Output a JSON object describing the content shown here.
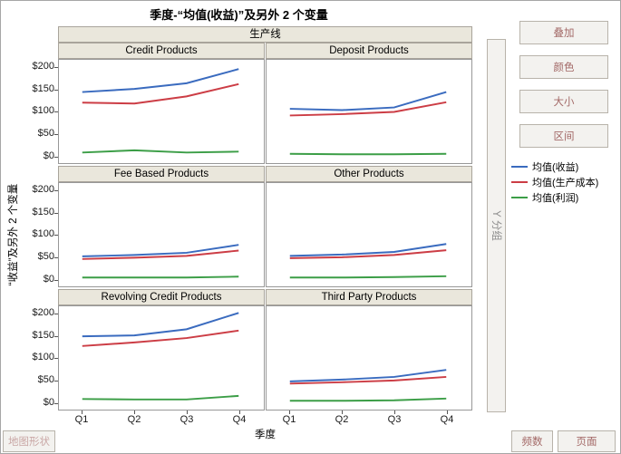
{
  "title": "季度-“均值(收益)”及另外 2 个变量",
  "chart_data": {
    "type": "line",
    "column_group_label": "生产线",
    "x": [
      "Q1",
      "Q2",
      "Q3",
      "Q4"
    ],
    "xlabel": "季度",
    "ylabel": "“收益”及另外 2 个变量",
    "ylim": [
      -16,
      218
    ],
    "yticks": [
      200,
      150,
      100,
      50,
      0
    ],
    "ytick_labels": [
      "$200",
      "$150",
      "$100",
      "$50",
      "$0"
    ],
    "grid": false,
    "legend_position": "right",
    "legend_entries": [
      {
        "label": "均值(收益)",
        "color": "#3a6bbf"
      },
      {
        "label": "均值(生产成本)",
        "color": "#cc3d45"
      },
      {
        "label": "均值(利润)",
        "color": "#3c9e47"
      }
    ],
    "panels": [
      {
        "title": "Credit Products",
        "series": [
          {
            "name": "均值(收益)",
            "values": [
              145,
              152,
              165,
              197
            ]
          },
          {
            "name": "均值(生产成本)",
            "values": [
              121,
              119,
              135,
              163
            ]
          },
          {
            "name": "均值(利润)",
            "values": [
              8,
              13,
              8,
              10
            ]
          }
        ]
      },
      {
        "title": "Deposit Products",
        "series": [
          {
            "name": "均值(收益)",
            "values": [
              107,
              104,
              110,
              145
            ]
          },
          {
            "name": "均值(生产成本)",
            "values": [
              92,
              95,
              100,
              122
            ]
          },
          {
            "name": "均值(利润)",
            "values": [
              5,
              4,
              4,
              5
            ]
          }
        ]
      },
      {
        "title": "Fee Based Products",
        "series": [
          {
            "name": "均值(收益)",
            "values": [
              52,
              55,
              60,
              78
            ]
          },
          {
            "name": "均值(生产成本)",
            "values": [
              46,
              49,
              53,
              65
            ]
          },
          {
            "name": "均值(利润)",
            "values": [
              4,
              4,
              4,
              6
            ]
          }
        ]
      },
      {
        "title": "Other Products",
        "series": [
          {
            "name": "均值(收益)",
            "values": [
              53,
              56,
              62,
              80
            ]
          },
          {
            "name": "均值(生产成本)",
            "values": [
              48,
              50,
              55,
              66
            ]
          },
          {
            "name": "均值(利润)",
            "values": [
              4,
              4,
              5,
              7
            ]
          }
        ]
      },
      {
        "title": "Revolving Credit Products",
        "series": [
          {
            "name": "均值(收益)",
            "values": [
              150,
              152,
              166,
              203
            ]
          },
          {
            "name": "均值(生产成本)",
            "values": [
              128,
              136,
              146,
              163
            ]
          },
          {
            "name": "均值(利润)",
            "values": [
              8,
              7,
              7,
              15
            ]
          }
        ]
      },
      {
        "title": "Third Party Products",
        "series": [
          {
            "name": "均值(收益)",
            "values": [
              48,
              52,
              58,
              74
            ]
          },
          {
            "name": "均值(生产成本)",
            "values": [
              43,
              46,
              50,
              58
            ]
          },
          {
            "name": "均值(利润)",
            "values": [
              4,
              4,
              5,
              9
            ]
          }
        ]
      }
    ]
  },
  "zones": {
    "overlay": "叠加",
    "color": "颜色",
    "size": "大小",
    "interval": "区间",
    "group_y": "Y 分组",
    "freq": "频数",
    "page": "页面",
    "map_shape": "地图形状"
  }
}
